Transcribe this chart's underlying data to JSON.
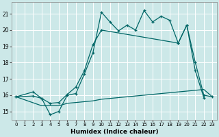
{
  "xlabel": "Humidex (Indice chaleur)",
  "bg_color": "#cce8e8",
  "grid_color": "#c8dede",
  "line_color": "#006666",
  "xlim": [
    -0.5,
    23.5
  ],
  "ylim": [
    14.5,
    21.7
  ],
  "xticks": [
    0,
    1,
    2,
    3,
    4,
    5,
    6,
    7,
    8,
    9,
    10,
    11,
    12,
    13,
    14,
    15,
    16,
    17,
    18,
    19,
    20,
    21,
    22,
    23
  ],
  "yticks": [
    15,
    16,
    17,
    18,
    19,
    20,
    21
  ],
  "line1_x": [
    0,
    2,
    3,
    4,
    5,
    6,
    7,
    8,
    9,
    10,
    11,
    12,
    13,
    14,
    15,
    16,
    17,
    18,
    19,
    20,
    21,
    22
  ],
  "line1_y": [
    15.9,
    16.2,
    15.8,
    14.8,
    15.0,
    16.0,
    16.1,
    17.3,
    18.6,
    21.1,
    20.5,
    19.95,
    20.3,
    20.0,
    21.2,
    20.5,
    20.85,
    20.6,
    19.2,
    20.3,
    17.5,
    15.85
  ],
  "line2_x": [
    0,
    2,
    3,
    4,
    5,
    6,
    7,
    8,
    9,
    10,
    19,
    20,
    21,
    22,
    23
  ],
  "line2_y": [
    15.9,
    15.95,
    15.8,
    15.5,
    15.55,
    16.05,
    16.5,
    17.5,
    19.1,
    20.0,
    19.2,
    20.3,
    18.0,
    16.0,
    15.9
  ],
  "line3_x": [
    0,
    3,
    4,
    5,
    6,
    7,
    8,
    9,
    10,
    11,
    12,
    13,
    14,
    15,
    16,
    17,
    18,
    19,
    20,
    21,
    22,
    23
  ],
  "line3_y": [
    15.9,
    15.35,
    15.35,
    15.35,
    15.5,
    15.55,
    15.6,
    15.65,
    15.75,
    15.8,
    15.85,
    15.9,
    15.95,
    16.0,
    16.05,
    16.1,
    16.15,
    16.2,
    16.25,
    16.3,
    16.35,
    15.9
  ]
}
